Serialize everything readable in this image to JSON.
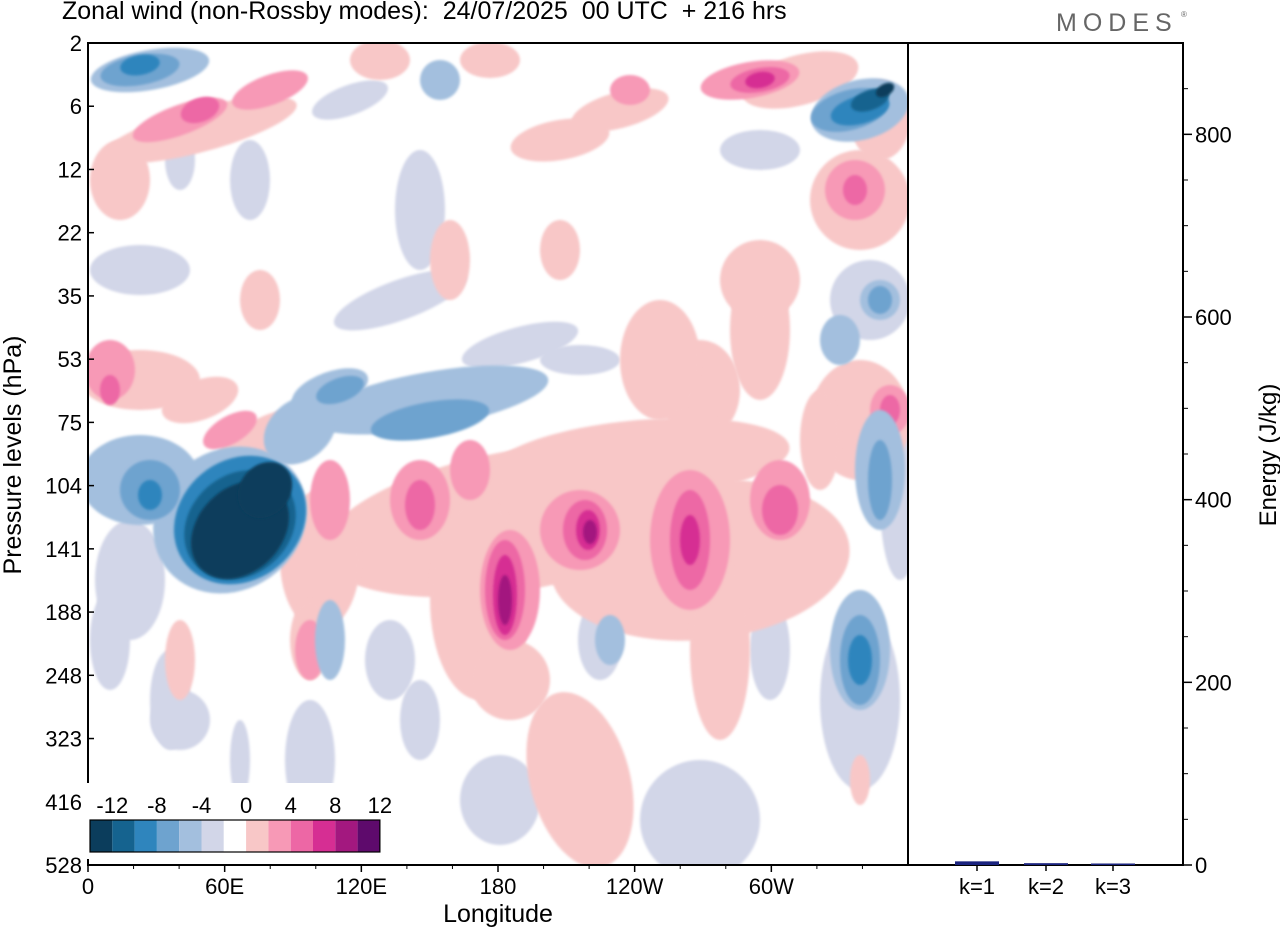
{
  "title": "Zonal wind (non-Rossby modes):  24/07/2025  00 UTC  + 216 hrs",
  "brand": {
    "name": "MODES",
    "mark": "®"
  },
  "chart_data": [
    {
      "type": "heatmap",
      "title": "Zonal wind (non-Rossby modes)",
      "xlabel": "Longitude",
      "ylabel": "Pressure levels (hPa)",
      "x_ticks": [
        "0",
        "60E",
        "120E",
        "180",
        "120W",
        "60W"
      ],
      "x_range_deg": [
        0,
        360
      ],
      "y_ticks": [
        "2",
        "6",
        "12",
        "22",
        "35",
        "53",
        "75",
        "104",
        "141",
        "188",
        "248",
        "323",
        "416",
        "528"
      ],
      "colorbar": {
        "labels": [
          "-12",
          "-8",
          "-4",
          "0",
          "4",
          "8",
          "12"
        ],
        "levels": [
          -14,
          -12,
          -10,
          -8,
          -6,
          -4,
          -2,
          2,
          4,
          6,
          8,
          10,
          12,
          14
        ],
        "colors": [
          "#0b3d5c",
          "#15638f",
          "#2f85bd",
          "#6ea3cf",
          "#a3bfde",
          "#d2d6e8",
          "#ffffff",
          "#f8c7c7",
          "#f799b6",
          "#ed67a5",
          "#d62e93",
          "#a3187f",
          "#5e0a6c"
        ]
      },
      "features": [
        {
          "name": "strong easterly core",
          "lon": 73,
          "level": "141",
          "value": -16
        },
        {
          "name": "westerly max near dateline",
          "lon": 185,
          "level": "188",
          "value": 12
        },
        {
          "name": "westerly max",
          "lon": 207,
          "level": "141",
          "value": 10
        },
        {
          "name": "westerly max",
          "lon": 248,
          "level": "141",
          "value": 8
        },
        {
          "name": "westerly max",
          "lon": 290,
          "level": "141",
          "value": 8
        },
        {
          "name": "easterly",
          "lon": 340,
          "level": "248",
          "value": -8
        },
        {
          "name": "upper easterly",
          "lon": 345,
          "level": "6",
          "value": -12
        },
        {
          "name": "upper westerly",
          "lon": 300,
          "level": "6",
          "value": 12
        }
      ]
    },
    {
      "type": "bar",
      "ylabel": "Energy (J/kg)",
      "categories": [
        "k=1",
        "k=2",
        "k=3"
      ],
      "values": [
        4,
        2,
        1
      ],
      "ylim": [
        0,
        900
      ],
      "y_ticks": [
        "0",
        "200",
        "400",
        "600",
        "800"
      ]
    }
  ]
}
